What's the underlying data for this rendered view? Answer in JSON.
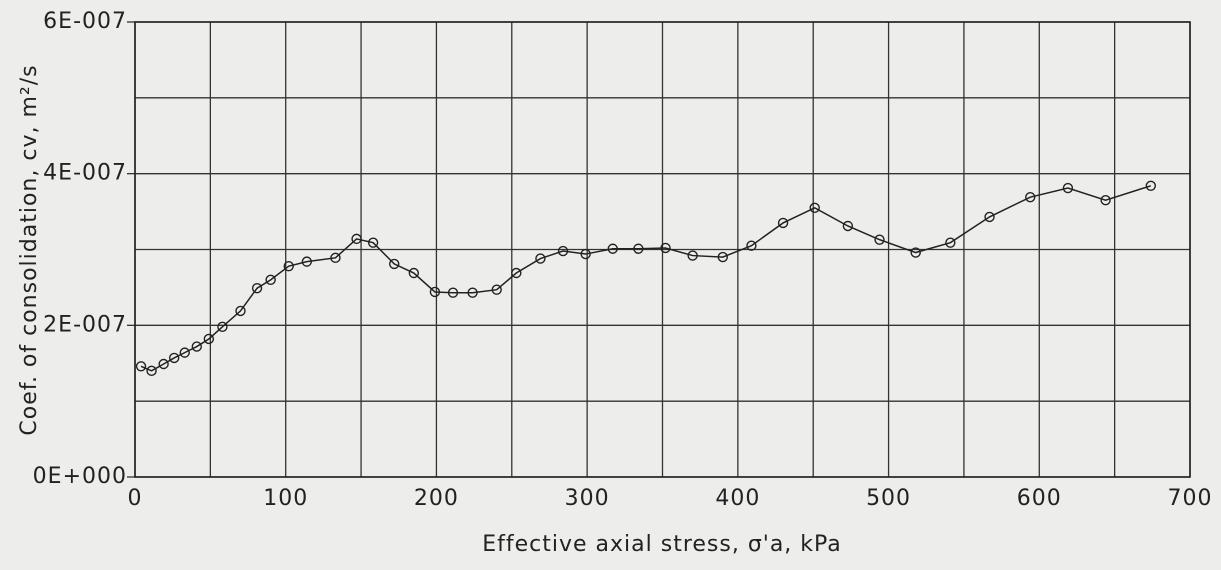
{
  "chart_data": {
    "type": "line",
    "xlabel": "Effective axial stress,  σ'a, kPa",
    "ylabel": "Coef. of consolidation, cv, m²/s",
    "x": [
      4,
      11,
      19,
      26,
      33,
      41,
      49,
      58,
      70,
      81,
      90,
      102,
      114,
      133,
      147,
      158,
      172,
      185,
      199,
      211,
      224,
      240,
      253,
      269,
      284,
      299,
      317,
      334,
      352,
      370,
      390,
      409,
      430,
      451,
      473,
      494,
      518,
      541,
      567,
      594,
      619,
      644,
      674
    ],
    "series": [
      {
        "color": "#222222",
        "values": [
          1.46e-07,
          1.4e-07,
          1.49e-07,
          1.57e-07,
          1.64e-07,
          1.72e-07,
          1.82e-07,
          1.98e-07,
          2.19e-07,
          2.49e-07,
          2.6e-07,
          2.78e-07,
          2.84e-07,
          2.89e-07,
          3.14e-07,
          3.09e-07,
          2.81e-07,
          2.69e-07,
          2.44e-07,
          2.43e-07,
          2.43e-07,
          2.47e-07,
          2.69e-07,
          2.88e-07,
          2.98e-07,
          2.94e-07,
          3.01e-07,
          3.01e-07,
          3.02e-07,
          2.92e-07,
          2.9e-07,
          3.05e-07,
          3.35e-07,
          3.55e-07,
          3.31e-07,
          3.13e-07,
          2.96e-07,
          3.09e-07,
          3.43e-07,
          3.69e-07,
          3.81e-07,
          3.65e-07,
          3.84e-07
        ]
      }
    ],
    "xlim": [
      0,
      700
    ],
    "xticks": [
      0,
      100,
      200,
      300,
      400,
      500,
      600,
      700
    ],
    "xgrid_minor": [
      50,
      150,
      250,
      350,
      450,
      550,
      650
    ],
    "ylim": [
      0,
      6e-07
    ],
    "yticks": [
      {
        "value": 0,
        "label": "0E+000"
      },
      {
        "value": 2e-07,
        "label": "2E-007"
      },
      {
        "value": 4e-07,
        "label": "4E-007"
      },
      {
        "value": 6e-07,
        "label": "6E-007"
      }
    ],
    "ygrid_minor": [
      1e-07,
      3e-07,
      5e-07
    ],
    "grid": true
  }
}
